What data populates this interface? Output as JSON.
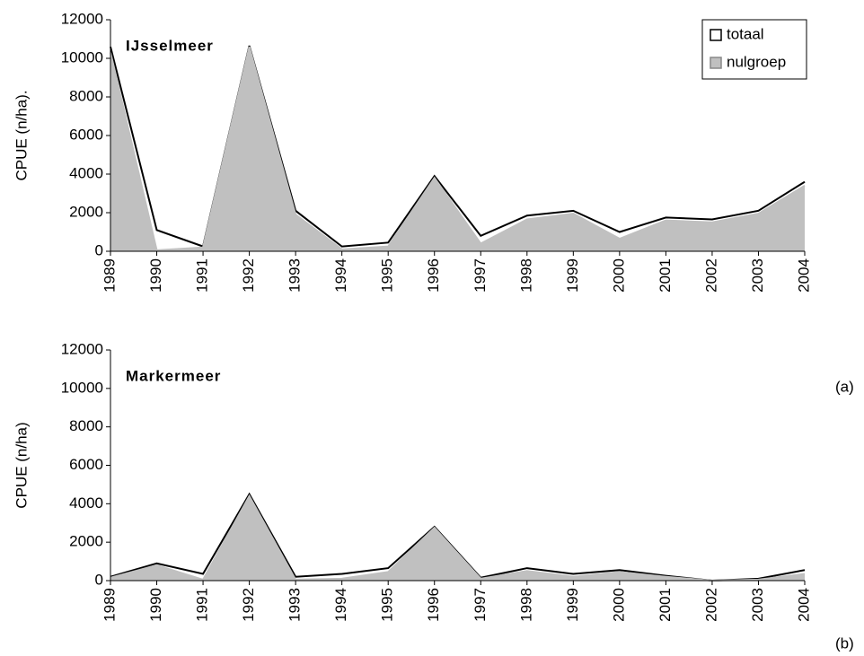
{
  "chart_data": [
    {
      "type": "area",
      "title": "IJsselmeer",
      "y_label": "CPUE (n/ha).",
      "panel_label": "(a)",
      "categories": [
        "1989",
        "1990",
        "1991",
        "1992",
        "1993",
        "1994",
        "1995",
        "1996",
        "1997",
        "1998",
        "1999",
        "2000",
        "2001",
        "2002",
        "2003",
        "2004"
      ],
      "series": [
        {
          "name": "totaal",
          "color": "#000000",
          "fill": "#ffffff",
          "values": [
            10600,
            1100,
            250,
            10650,
            2100,
            250,
            450,
            3900,
            800,
            1850,
            2100,
            1000,
            1750,
            1650,
            2100,
            3600
          ]
        },
        {
          "name": "nulgroep",
          "color": "#c0c0c0",
          "fill": "#c0c0c0",
          "values": [
            10300,
            50,
            200,
            10600,
            1900,
            100,
            250,
            3800,
            400,
            1650,
            1950,
            650,
            1600,
            1500,
            1950,
            3400
          ]
        }
      ],
      "ylim": [
        0,
        12000
      ],
      "yticks": [
        0,
        2000,
        4000,
        6000,
        8000,
        10000,
        12000
      ],
      "legend": "upper right"
    },
    {
      "type": "area",
      "title": "Markermeer",
      "y_label": "CPUE (n/ha)",
      "panel_label": "(b)",
      "categories": [
        "1989",
        "1990",
        "1991",
        "1992",
        "1993",
        "1994",
        "1995",
        "1996",
        "1997",
        "1998",
        "1999",
        "2000",
        "2001",
        "2002",
        "2003",
        "2004"
      ],
      "series": [
        {
          "color": "#000000",
          "fill": "#ffffff",
          "values": [
            200,
            900,
            350,
            4500,
            200,
            350,
            650,
            2800,
            150,
            650,
            350,
            550,
            250,
            0,
            100,
            550
          ]
        },
        {
          "color": "#c0c0c0",
          "fill": "#c0c0c0",
          "values": [
            150,
            800,
            50,
            4400,
            50,
            100,
            450,
            2750,
            100,
            500,
            200,
            450,
            200,
            0,
            50,
            350
          ]
        }
      ],
      "ylim": [
        0,
        12000
      ],
      "yticks": [
        0,
        2000,
        4000,
        6000,
        8000,
        10000,
        12000
      ]
    }
  ]
}
